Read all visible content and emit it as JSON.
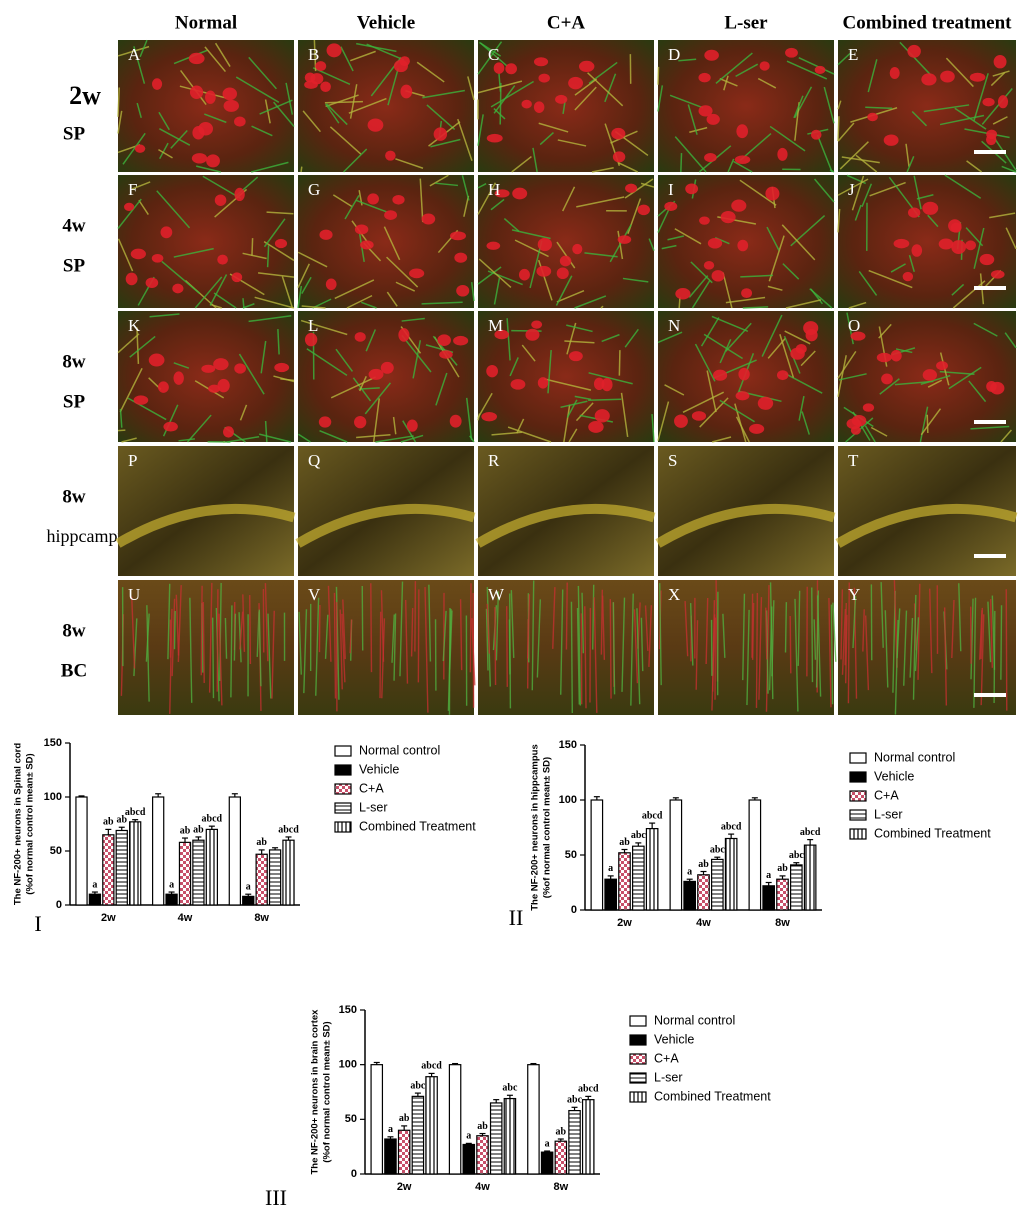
{
  "figure": {
    "column_headers": [
      "Normal",
      "Vehicle",
      "C+A",
      "L-ser",
      "Combined treatment"
    ],
    "rows": [
      {
        "time": "2w",
        "region": "SP",
        "panels": [
          "A",
          "B",
          "C",
          "D",
          "E"
        ]
      },
      {
        "time": "4w",
        "region": "SP",
        "panels": [
          "F",
          "G",
          "H",
          "I",
          "J"
        ]
      },
      {
        "time": "8w",
        "region": "SP",
        "panels": [
          "K",
          "L",
          "M",
          "N",
          "O"
        ]
      },
      {
        "time": "8w",
        "region": "hippcampus",
        "panels": [
          "P",
          "Q",
          "R",
          "S",
          "T"
        ]
      },
      {
        "time": "8w",
        "region": "BC",
        "panels": [
          "U",
          "V",
          "W",
          "X",
          "Y"
        ]
      }
    ]
  },
  "chart_data": [
    {
      "type": "bar",
      "panel_label": "I",
      "ylabel": [
        "The NF-200+ neurons in Spinal cord",
        "(%of normal control mean± SD)"
      ],
      "categories": [
        "2w",
        "4w",
        "8w"
      ],
      "ylim": [
        0,
        150
      ],
      "yticks": [
        0,
        50,
        100,
        150
      ],
      "series": [
        {
          "name": "Normal control",
          "color": "#ffffff",
          "pattern": "none",
          "values": [
            100,
            100,
            100
          ],
          "errors": [
            1,
            3,
            3
          ],
          "annotations": [
            null,
            null,
            null
          ]
        },
        {
          "name": "Vehicle",
          "color": "#000000",
          "pattern": "none",
          "values": [
            10,
            10,
            8
          ],
          "errors": [
            2,
            2,
            2
          ],
          "annotations": [
            "a",
            "a",
            "a"
          ]
        },
        {
          "name": "C+A",
          "color": "#c8506a",
          "pattern": "checker",
          "values": [
            65,
            58,
            47
          ],
          "errors": [
            5,
            4,
            4
          ],
          "annotations": [
            "ab",
            "ab",
            "ab"
          ]
        },
        {
          "name": "L-ser",
          "color": "#ffffff",
          "pattern": "hlines",
          "values": [
            69,
            60,
            51
          ],
          "errors": [
            3,
            3,
            2
          ],
          "annotations": [
            "ab",
            "ab",
            null
          ]
        },
        {
          "name": "Combined Treatment",
          "color": "#ffffff",
          "pattern": "vlines",
          "values": [
            77,
            70,
            60
          ],
          "errors": [
            2,
            3,
            3
          ],
          "annotations": [
            "abcd",
            "abcd",
            "abcd"
          ]
        }
      ]
    },
    {
      "type": "bar",
      "panel_label": "II",
      "ylabel": [
        "The NF-200+ neurons in hippcampus",
        "(%of normal control mean± SD)"
      ],
      "categories": [
        "2w",
        "4w",
        "8w"
      ],
      "ylim": [
        0,
        150
      ],
      "yticks": [
        0,
        50,
        100,
        150
      ],
      "series": [
        {
          "name": "Normal control",
          "color": "#ffffff",
          "pattern": "none",
          "values": [
            100,
            100,
            100
          ],
          "errors": [
            3,
            2,
            2
          ],
          "annotations": [
            null,
            null,
            null
          ]
        },
        {
          "name": "Vehicle",
          "color": "#000000",
          "pattern": "none",
          "values": [
            28,
            26,
            22
          ],
          "errors": [
            3,
            2,
            3
          ],
          "annotations": [
            "a",
            "a",
            "a"
          ]
        },
        {
          "name": "C+A",
          "color": "#c8506a",
          "pattern": "checker",
          "values": [
            52,
            32,
            28
          ],
          "errors": [
            3,
            3,
            3
          ],
          "annotations": [
            "ab",
            "ab",
            "ab"
          ]
        },
        {
          "name": "L-ser",
          "color": "#ffffff",
          "pattern": "hlines",
          "values": [
            58,
            46,
            41
          ],
          "errors": [
            3,
            2,
            2
          ],
          "annotations": [
            "abc",
            "abc",
            "abc"
          ]
        },
        {
          "name": "Combined Treatment",
          "color": "#ffffff",
          "pattern": "vlines",
          "values": [
            74,
            65,
            59
          ],
          "errors": [
            5,
            4,
            5
          ],
          "annotations": [
            "abcd",
            "abcd",
            "abcd"
          ]
        }
      ]
    },
    {
      "type": "bar",
      "panel_label": "III",
      "ylabel": [
        "The NF-200+ neurons in brain cortex",
        "(%of normal control mean± SD)"
      ],
      "categories": [
        "2w",
        "4w",
        "8w"
      ],
      "ylim": [
        0,
        150
      ],
      "yticks": [
        0,
        50,
        100,
        150
      ],
      "series": [
        {
          "name": "Normal control",
          "color": "#ffffff",
          "pattern": "none",
          "values": [
            100,
            100,
            100
          ],
          "errors": [
            2,
            1,
            1
          ],
          "annotations": [
            null,
            null,
            null
          ]
        },
        {
          "name": "Vehicle",
          "color": "#000000",
          "pattern": "none",
          "values": [
            32,
            27,
            20
          ],
          "errors": [
            2,
            1,
            1
          ],
          "annotations": [
            "a",
            "a",
            "a"
          ]
        },
        {
          "name": "C+A",
          "color": "#c8506a",
          "pattern": "checker",
          "values": [
            40,
            35,
            30
          ],
          "errors": [
            4,
            2,
            2
          ],
          "annotations": [
            "ab",
            "ab",
            "ab"
          ]
        },
        {
          "name": "L-ser",
          "color": "#ffffff",
          "pattern": "hlines",
          "values": [
            71,
            65,
            58
          ],
          "errors": [
            3,
            3,
            3
          ],
          "annotations": [
            "abc",
            null,
            "abc"
          ]
        },
        {
          "name": "Combined Treatment",
          "color": "#ffffff",
          "pattern": "vlines",
          "values": [
            89,
            69,
            68
          ],
          "errors": [
            3,
            3,
            3
          ],
          "annotations": [
            "abcd",
            "abc",
            "abcd"
          ]
        }
      ]
    }
  ]
}
